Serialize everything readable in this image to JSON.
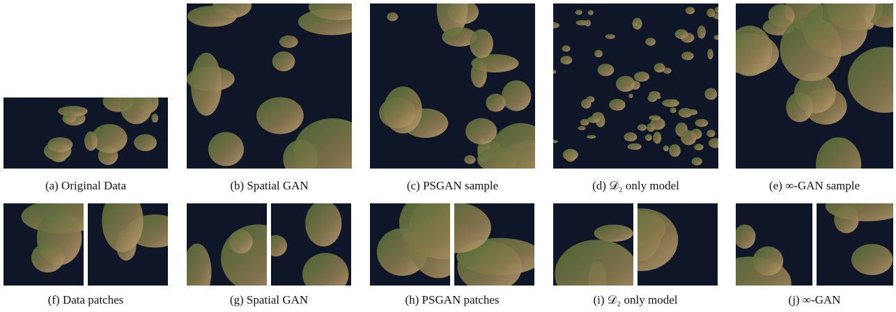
{
  "figure": {
    "top_row": [
      {
        "caption": "(a)  Original Data"
      },
      {
        "caption": "(b)  Spatial GAN"
      },
      {
        "caption": "(c)  PSGAN sample"
      },
      {
        "caption": "(d)  𝒟₂ only model"
      },
      {
        "caption": "(e)  ∞-GAN sample"
      }
    ],
    "bottom_row": [
      {
        "caption": "(f)  Data patches"
      },
      {
        "caption": "(g)  Spatial GAN"
      },
      {
        "caption": "(h)  PSGAN patches"
      },
      {
        "caption": "(i)  𝒟₂ only model"
      },
      {
        "caption": "(j)  ∞-GAN"
      }
    ]
  }
}
